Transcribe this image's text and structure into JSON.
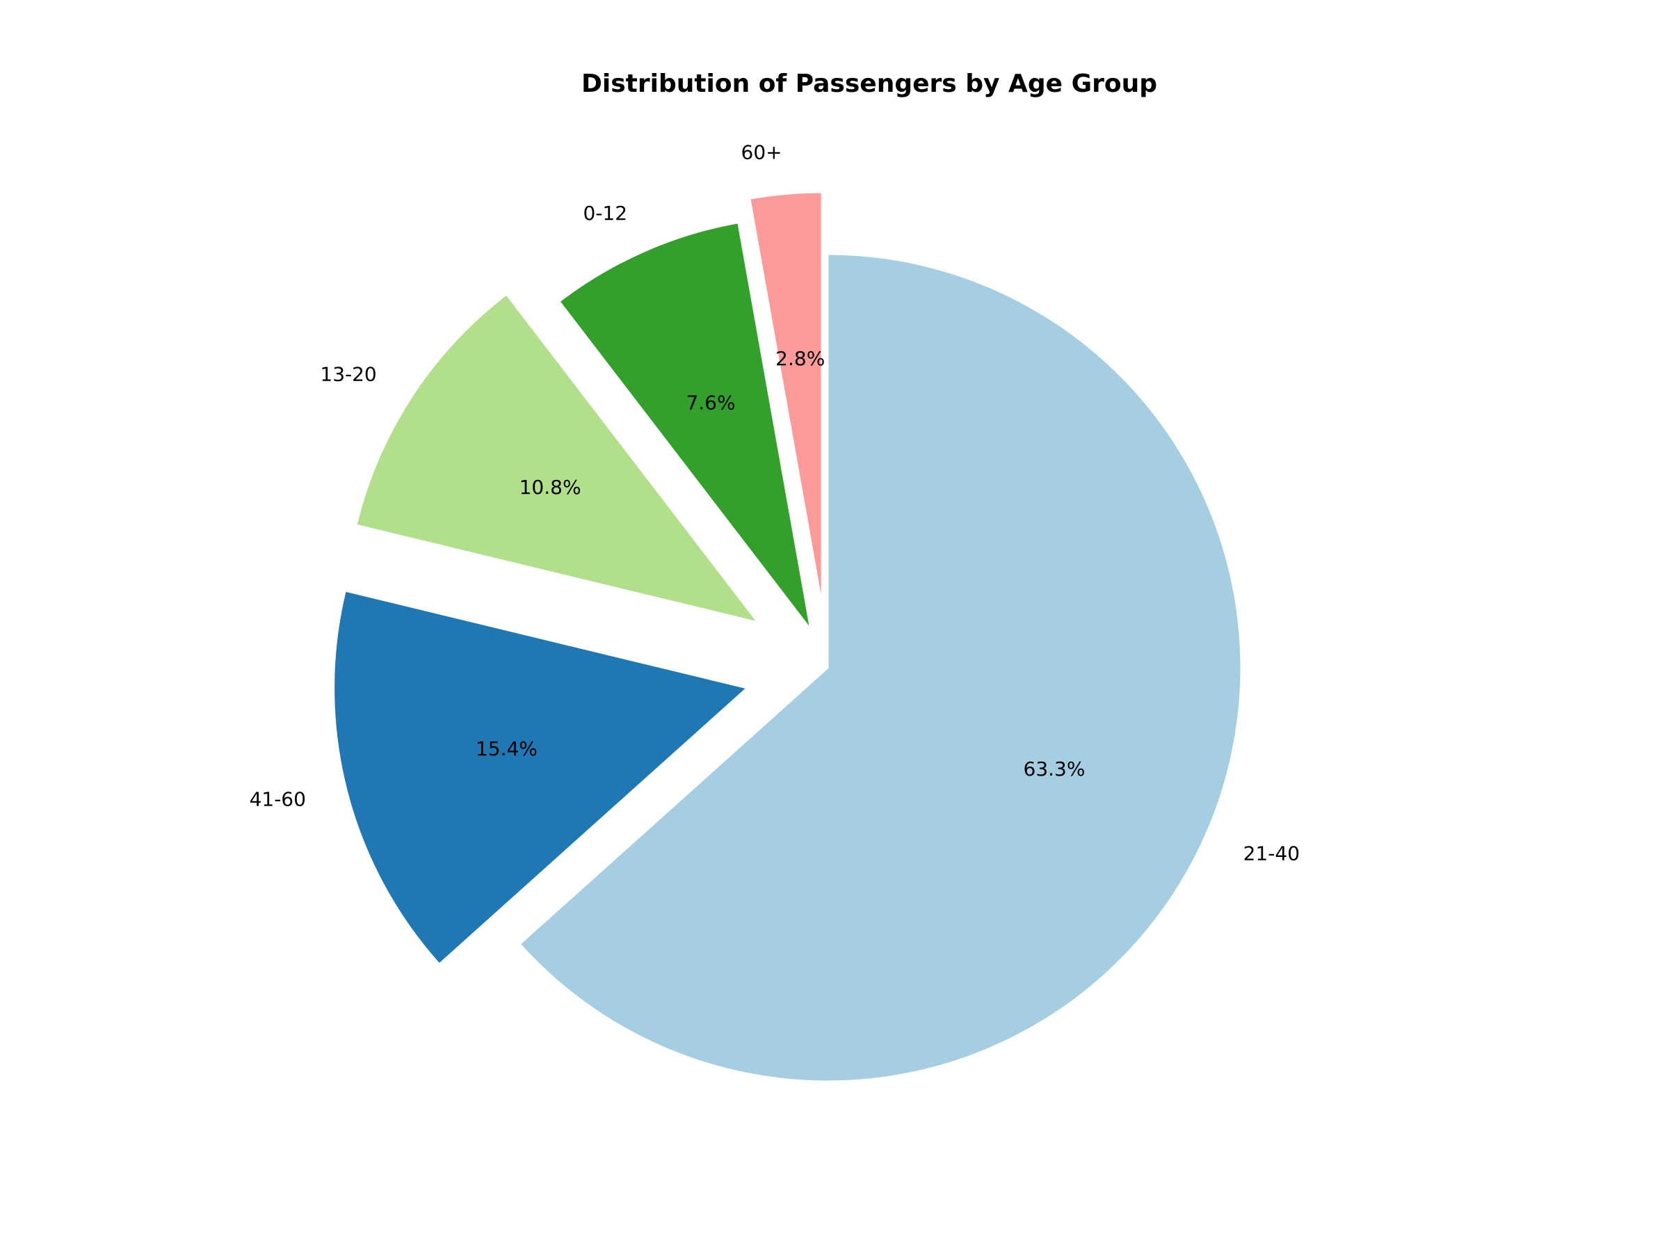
{
  "chart_data": {
    "type": "pie",
    "title": "Distribution of Passengers by Age Group",
    "start_angle_deg": 90,
    "direction": "clockwise",
    "slices": [
      {
        "label": "21-40",
        "value": 63.3,
        "pct_label": "63.3%",
        "color": "#a6cee3",
        "explode": 0.0
      },
      {
        "label": "41-60",
        "value": 15.4,
        "pct_label": "15.4%",
        "color": "#1f78b4",
        "explode": 0.2
      },
      {
        "label": "13-20",
        "value": 10.8,
        "pct_label": "10.8%",
        "color": "#b2df8a",
        "explode": 0.2
      },
      {
        "label": "0-12",
        "value": 7.6,
        "pct_label": "7.6%",
        "color": "#33a02c",
        "explode": 0.1
      },
      {
        "label": "60+",
        "value": 2.8,
        "pct_label": "2.8%",
        "color": "#fb9a99",
        "explode": 0.15
      }
    ]
  }
}
